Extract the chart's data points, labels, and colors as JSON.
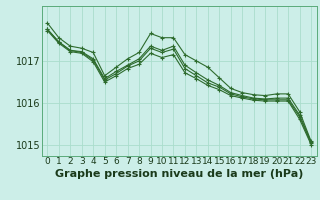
{
  "title": "Graphe pression niveau de la mer (hPa)",
  "background_color": "#cceee8",
  "grid_color": "#aaddcc",
  "line_color": "#2d6b2d",
  "x_labels": [
    "0",
    "1",
    "2",
    "3",
    "4",
    "5",
    "6",
    "7",
    "8",
    "9",
    "10",
    "11",
    "12",
    "13",
    "14",
    "15",
    "16",
    "17",
    "18",
    "19",
    "20",
    "21",
    "22",
    "23"
  ],
  "series": [
    [
      1017.9,
      1017.55,
      1017.35,
      1017.3,
      1017.2,
      1016.65,
      1016.85,
      1017.05,
      1017.2,
      1017.65,
      1017.55,
      1017.55,
      1017.15,
      1017.0,
      1016.85,
      1016.6,
      1016.35,
      1016.25,
      1016.2,
      1016.18,
      1016.22,
      1016.22,
      1015.8,
      1015.1
    ],
    [
      1017.75,
      1017.45,
      1017.25,
      1017.22,
      1017.05,
      1016.58,
      1016.75,
      1016.9,
      1017.05,
      1017.35,
      1017.25,
      1017.35,
      1016.9,
      1016.72,
      1016.55,
      1016.42,
      1016.25,
      1016.18,
      1016.12,
      1016.1,
      1016.12,
      1016.12,
      1015.72,
      1015.08
    ],
    [
      1017.75,
      1017.45,
      1017.25,
      1017.2,
      1017.02,
      1016.55,
      1016.7,
      1016.88,
      1017.0,
      1017.3,
      1017.2,
      1017.28,
      1016.82,
      1016.65,
      1016.48,
      1016.38,
      1016.22,
      1016.15,
      1016.1,
      1016.08,
      1016.08,
      1016.08,
      1015.68,
      1015.05
    ],
    [
      1017.72,
      1017.42,
      1017.22,
      1017.18,
      1016.98,
      1016.5,
      1016.65,
      1016.82,
      1016.92,
      1017.18,
      1017.08,
      1017.15,
      1016.72,
      1016.58,
      1016.42,
      1016.32,
      1016.18,
      1016.12,
      1016.07,
      1016.05,
      1016.05,
      1016.05,
      1015.62,
      1015.02
    ]
  ],
  "ylim": [
    1014.75,
    1018.3
  ],
  "yticks": [
    1015,
    1016,
    1017
  ],
  "xlim": [
    -0.5,
    23.5
  ],
  "title_fontsize": 8,
  "tick_fontsize": 6.5
}
